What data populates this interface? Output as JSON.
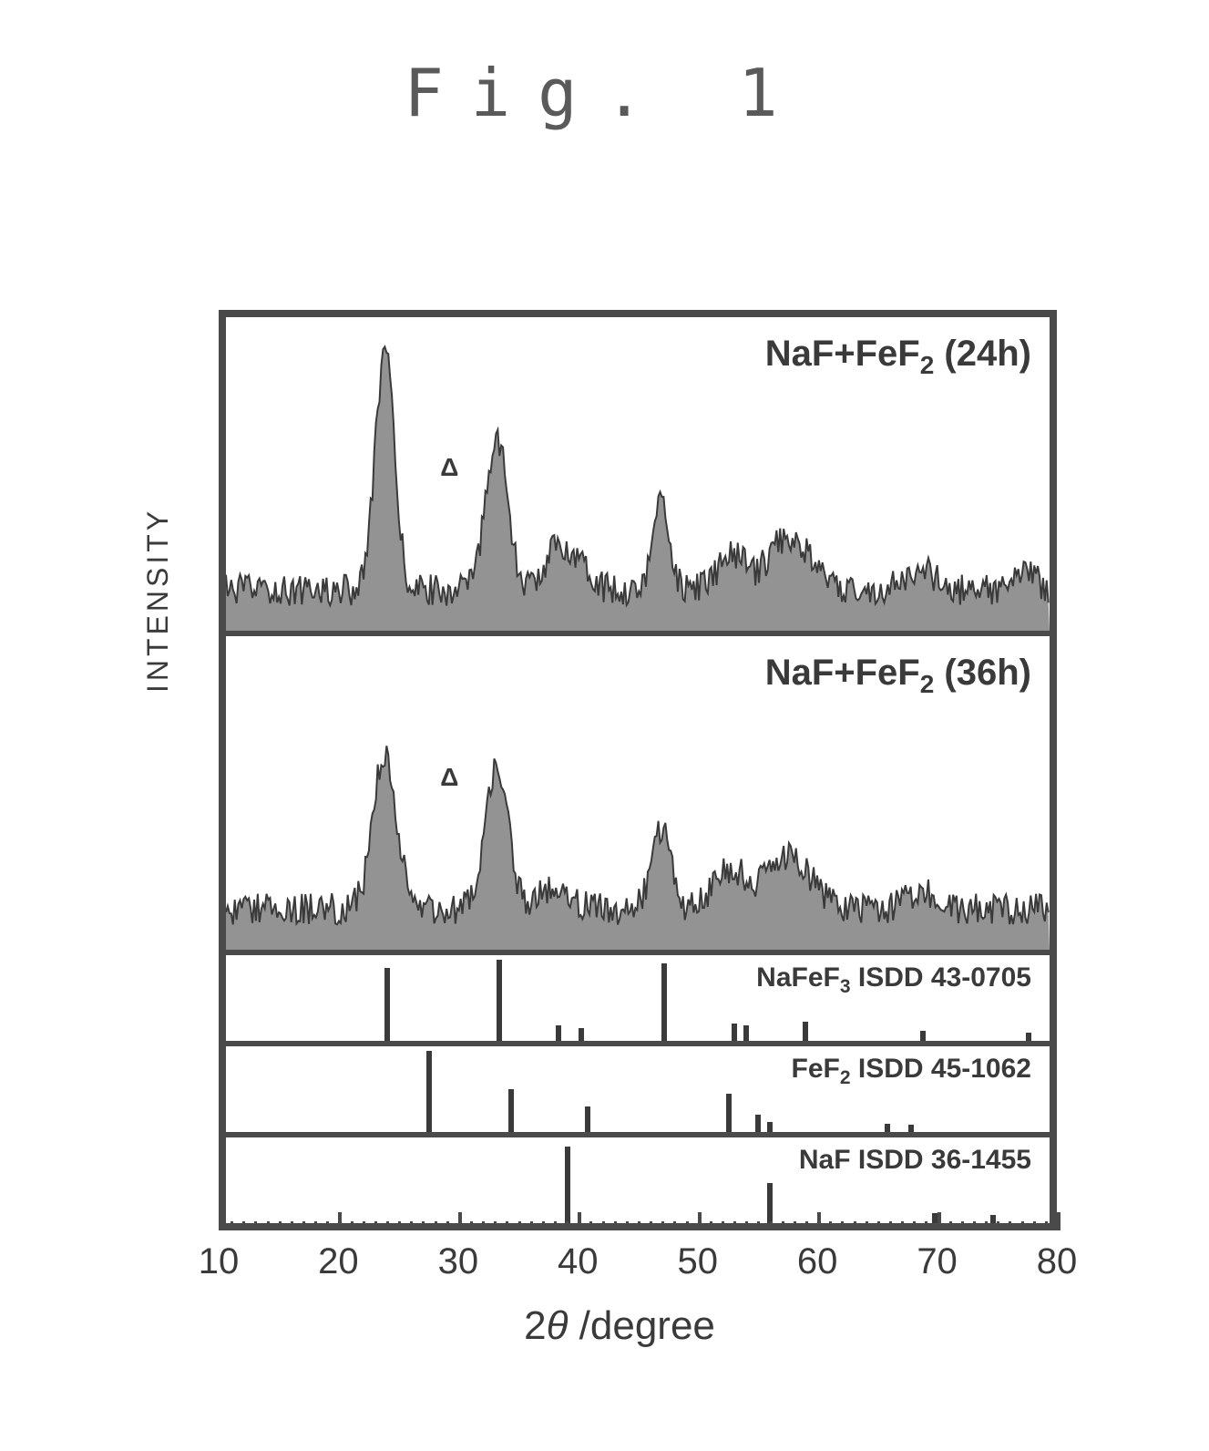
{
  "figure": {
    "title": "Fig. 1",
    "title_fontsize": 72,
    "title_letterspacing": 30,
    "title_color": "#5a5a5a"
  },
  "chart": {
    "xlabel_prefix": "2",
    "xlabel_theta": "θ",
    "xlabel_suffix": "/degree",
    "ylabel": "INTENSITY",
    "xlim": [
      10,
      80
    ],
    "x_major_ticks": [
      10,
      20,
      30,
      40,
      50,
      60,
      70,
      80
    ],
    "x_minor_step": 1,
    "border_color": "#4a4a4a",
    "border_width": 8,
    "background_color": "#ffffff",
    "xlabel_fontsize": 44,
    "ylabel_fontsize": 32,
    "tick_label_fontsize": 40,
    "text_color": "#3a3a3a",
    "line_color": "#3a3a3a"
  },
  "panels": [
    {
      "id": "p24h",
      "label_prefix": "NaF+FeF",
      "label_sub": "2",
      "label_suffix": " (24h)",
      "label_fontsize": 40,
      "type": "xrd_spectrum",
      "height_ratio": 0.35,
      "baseline_y": 0.92,
      "noise_amplitude": 0.1,
      "peaks": [
        {
          "x": 23.5,
          "intensity": 0.95,
          "width": 0.8
        },
        {
          "x": 33.0,
          "intensity": 0.62,
          "width": 0.9
        },
        {
          "x": 38.0,
          "intensity": 0.15,
          "width": 1.0
        },
        {
          "x": 40.0,
          "intensity": 0.12,
          "width": 1.0
        },
        {
          "x": 47.0,
          "intensity": 0.35,
          "width": 0.7
        },
        {
          "x": 53.0,
          "intensity": 0.14,
          "width": 1.2
        },
        {
          "x": 57.0,
          "intensity": 0.16,
          "width": 1.2
        },
        {
          "x": 59.0,
          "intensity": 0.14,
          "width": 1.2
        },
        {
          "x": 69.0,
          "intensity": 0.08,
          "width": 1.2
        },
        {
          "x": 78.0,
          "intensity": 0.06,
          "width": 1.0
        }
      ],
      "delta_marker": {
        "x": 29,
        "y_from_top": 0.48,
        "symbol": "Δ"
      }
    },
    {
      "id": "p36h",
      "label_prefix": "NaF+FeF",
      "label_sub": "2",
      "label_suffix": " (36h)",
      "label_fontsize": 40,
      "type": "xrd_spectrum",
      "height_ratio": 0.35,
      "baseline_y": 0.92,
      "noise_amplitude": 0.1,
      "peaks": [
        {
          "x": 23.5,
          "intensity": 0.62,
          "width": 1.0
        },
        {
          "x": 33.0,
          "intensity": 0.55,
          "width": 1.0
        },
        {
          "x": 38.0,
          "intensity": 0.1,
          "width": 1.2
        },
        {
          "x": 47.0,
          "intensity": 0.32,
          "width": 0.8
        },
        {
          "x": 53.0,
          "intensity": 0.16,
          "width": 1.4
        },
        {
          "x": 57.0,
          "intensity": 0.14,
          "width": 1.4
        },
        {
          "x": 59.0,
          "intensity": 0.12,
          "width": 1.4
        },
        {
          "x": 69.0,
          "intensity": 0.07,
          "width": 1.2
        }
      ],
      "delta_marker": {
        "x": 29,
        "y_from_top": 0.45,
        "symbol": "Δ"
      }
    },
    {
      "id": "ref1",
      "label_prefix": "NaFeF",
      "label_sub": "3",
      "label_suffix": " ISDD 43-0705",
      "label_fontsize": 30,
      "type": "reference",
      "height_ratio": 0.1,
      "lines": [
        {
          "x": 23.5,
          "h": 0.85
        },
        {
          "x": 33.0,
          "h": 0.95
        },
        {
          "x": 38.0,
          "h": 0.18
        },
        {
          "x": 40.0,
          "h": 0.15
        },
        {
          "x": 47.0,
          "h": 0.9
        },
        {
          "x": 53.0,
          "h": 0.2
        },
        {
          "x": 54.0,
          "h": 0.18
        },
        {
          "x": 59.0,
          "h": 0.22
        },
        {
          "x": 69.0,
          "h": 0.12
        },
        {
          "x": 78.0,
          "h": 0.1
        }
      ]
    },
    {
      "id": "ref2",
      "label_prefix": "FeF",
      "label_sub": "2",
      "label_suffix": "  ISDD 45-1062",
      "label_fontsize": 30,
      "type": "reference",
      "height_ratio": 0.1,
      "lines": [
        {
          "x": 27.0,
          "h": 0.95
        },
        {
          "x": 34.0,
          "h": 0.5
        },
        {
          "x": 40.5,
          "h": 0.3
        },
        {
          "x": 52.5,
          "h": 0.45
        },
        {
          "x": 55.0,
          "h": 0.2
        },
        {
          "x": 56.0,
          "h": 0.12
        },
        {
          "x": 66.0,
          "h": 0.1
        },
        {
          "x": 68.0,
          "h": 0.08
        }
      ]
    },
    {
      "id": "ref3",
      "label_prefix": "NaF",
      "label_sub": "",
      "label_suffix": " ISDD 36-1455",
      "label_fontsize": 30,
      "type": "reference",
      "height_ratio": 0.1,
      "lines": [
        {
          "x": 38.8,
          "h": 0.95
        },
        {
          "x": 56.0,
          "h": 0.5
        },
        {
          "x": 70.0,
          "h": 0.12
        },
        {
          "x": 75.0,
          "h": 0.1
        }
      ]
    }
  ]
}
